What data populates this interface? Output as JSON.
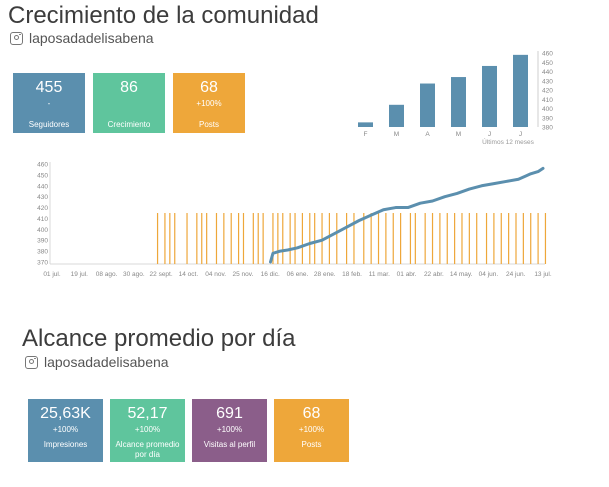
{
  "section1": {
    "title": "Crecimiento de la comunidad",
    "handle": "laposadadelisabena",
    "cards": [
      {
        "value": "455",
        "delta": "-",
        "label": "Seguidores",
        "color": "#5b8fae"
      },
      {
        "value": "86",
        "delta": "",
        "label": "Crecimiento",
        "color": "#5fc59d"
      },
      {
        "value": "68",
        "delta": "+100%",
        "label": "Posts",
        "color": "#eea73a"
      }
    ]
  },
  "section2": {
    "title": "Alcance promedio por día",
    "handle": "laposadadelisabena",
    "cards": [
      {
        "value": "25,63K",
        "delta": "+100%",
        "label": "Impresiones",
        "color": "#5b8fae"
      },
      {
        "value": "52,17",
        "delta": "+100%",
        "label": "Alcance promedio por día",
        "color": "#5fc59d"
      },
      {
        "value": "691",
        "delta": "+100%",
        "label": "Visitas al perfil",
        "color": "#8b5e8a"
      },
      {
        "value": "68",
        "delta": "+100%",
        "label": "Posts",
        "color": "#eea73a"
      }
    ]
  },
  "chart_data": [
    {
      "type": "bar",
      "categories": [
        "F",
        "M",
        "A",
        "M",
        "J",
        "J"
      ],
      "values": [
        385,
        404,
        427,
        434,
        446,
        458
      ],
      "ylim": [
        380,
        460
      ],
      "yticks": [
        "460",
        "450",
        "440",
        "430",
        "420",
        "410",
        "400",
        "390",
        "380"
      ],
      "xlabel": "Últimos 12 meses",
      "color": "#5b8fae",
      "grid": false
    },
    {
      "type": "line",
      "xticks": [
        "01 jul.",
        "19 jul.",
        "08 ago.",
        "30 ago.",
        "22 sept.",
        "14 oct.",
        "04 nov.",
        "25 nov.",
        "16 dic.",
        "06 ene.",
        "28 ene.",
        "18 feb.",
        "11 mar.",
        "01 abr.",
        "22 abr.",
        "14 may.",
        "04 jun.",
        "24 jun.",
        "13 jul."
      ],
      "yticks": [
        "460",
        "450",
        "440",
        "430",
        "420",
        "410",
        "400",
        "390",
        "380",
        "370"
      ],
      "ylim": [
        370,
        460
      ],
      "series": [
        {
          "color": "#5b8fae",
          "x": [
            0.89,
            0.9,
            0.93,
            0.96,
            1.0,
            1.05,
            1.1,
            1.15,
            1.2,
            1.25,
            1.3,
            1.35,
            1.4,
            1.45,
            1.5,
            1.55,
            1.6,
            1.65,
            1.7,
            1.75,
            1.8,
            1.85,
            1.9,
            1.93,
            1.95,
            1.98,
            2.0
          ],
          "values": [
            370,
            378,
            380,
            381,
            383,
            387,
            390,
            396,
            402,
            408,
            413,
            418,
            420,
            420,
            424,
            426,
            430,
            433,
            437,
            440,
            442,
            444,
            446,
            449,
            451,
            453,
            456
          ]
        }
      ],
      "posts_marker_value": 415,
      "posts_color": "#eea73a",
      "posts_x": [
        0.43,
        0.46,
        0.48,
        0.5,
        0.55,
        0.59,
        0.61,
        0.63,
        0.67,
        0.7,
        0.73,
        0.76,
        0.78,
        0.82,
        0.84,
        0.86,
        0.9,
        0.92,
        0.94,
        0.97,
        0.99,
        1.02,
        1.05,
        1.07,
        1.1,
        1.13,
        1.16,
        1.2,
        1.23,
        1.27,
        1.3,
        1.33,
        1.36,
        1.39,
        1.42,
        1.46,
        1.48,
        1.52,
        1.55,
        1.58,
        1.61,
        1.64,
        1.67,
        1.7,
        1.73,
        1.77,
        1.8,
        1.83,
        1.86,
        1.89,
        1.92,
        1.95,
        1.98,
        2.01
      ],
      "grid": false
    }
  ]
}
